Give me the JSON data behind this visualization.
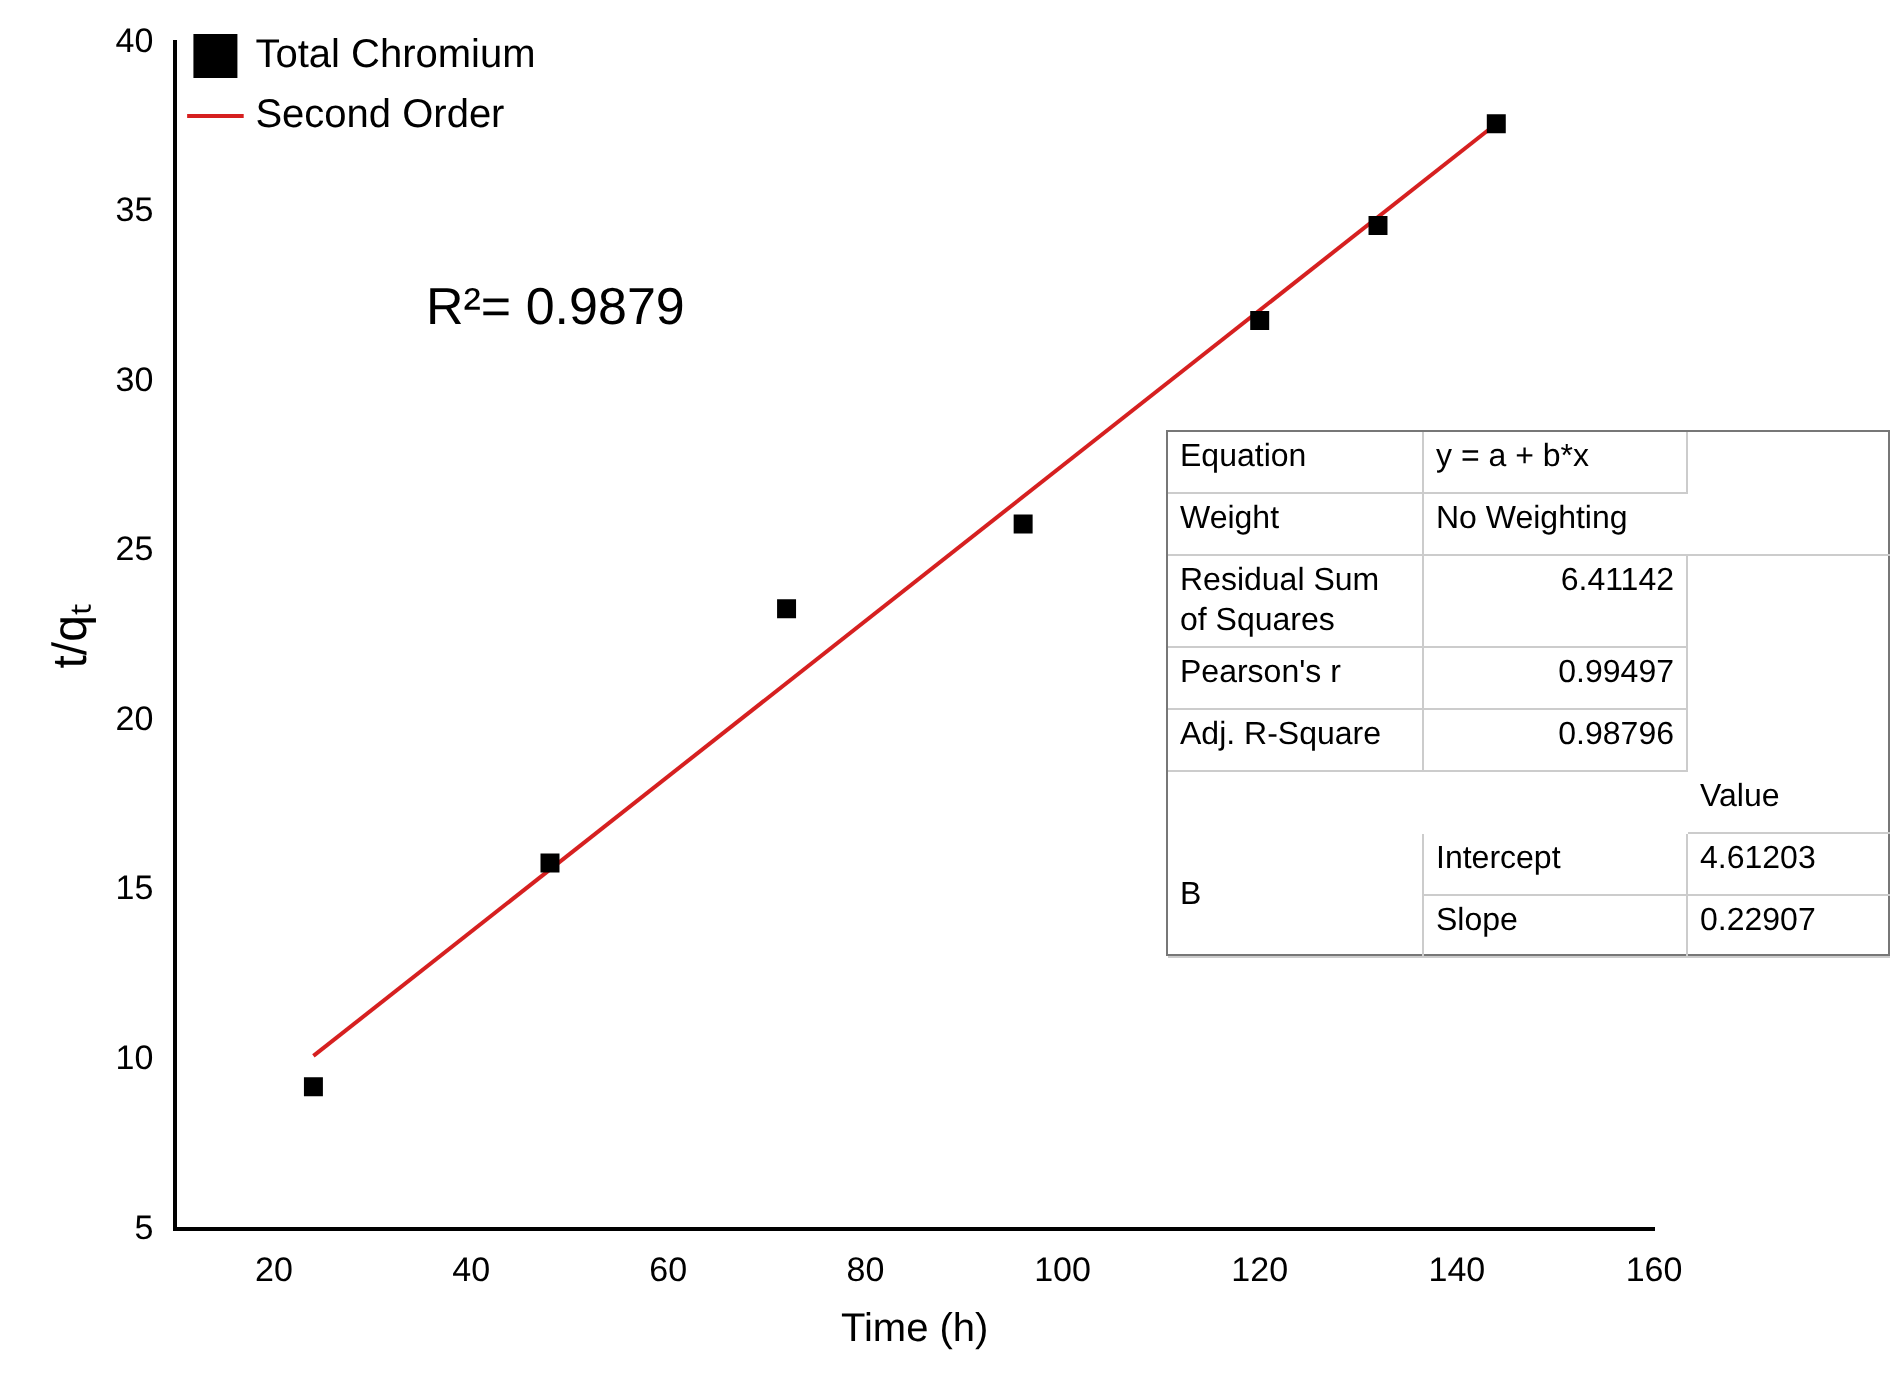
{
  "chart_data": {
    "type": "scatter",
    "xlabel": "Time (h)",
    "ylabel": "t/qₜ",
    "series": [
      {
        "name": "Total Chromium",
        "color": "#000000",
        "marker": "square",
        "x": [
          24,
          48,
          72,
          96,
          120,
          132,
          144
        ],
        "values": [
          9.2,
          15.8,
          23.3,
          25.8,
          31.8,
          34.6,
          37.6
        ]
      },
      {
        "name": "Second Order",
        "type": "line",
        "color": "#d62020",
        "marker": "none",
        "line_style": "solid",
        "x": [
          24,
          144
        ],
        "values": [
          10.11,
          37.6
        ]
      }
    ],
    "xlim": [
      10,
      160
    ],
    "xticks": [
      20,
      40,
      60,
      80,
      100,
      120,
      140,
      160
    ],
    "ylim": [
      5,
      40
    ],
    "yticks": [
      5,
      10,
      15,
      20,
      25,
      30,
      35,
      40
    ],
    "grid": false,
    "legend": "top left",
    "annotations": [
      "R²= 0.9879",
      "Equation",
      "y = a + b*x",
      "Weight",
      "No Weighting",
      "Residual Sum of Squares",
      "6.41142",
      "Pearson's r",
      "0.99497",
      "Adj. R-Square",
      "0.98796",
      "Value",
      "B",
      "Intercept",
      "4.61203",
      "Slope",
      "0.22907"
    ]
  }
}
